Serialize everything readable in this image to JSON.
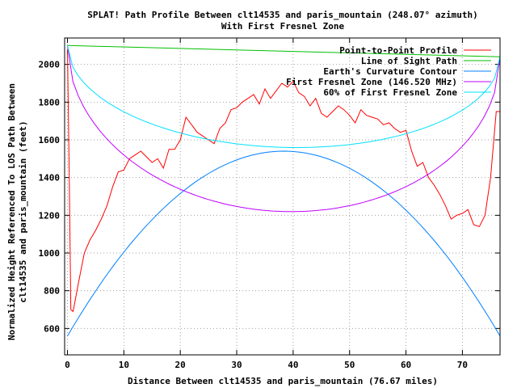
{
  "chart_data": {
    "type": "line",
    "title_line1": "SPLAT! Path Profile Between clt14535 and paris_mountain (248.07° azimuth)",
    "title_line2": "With First Fresnel Zone",
    "xlabel": "Distance Between clt14535 and paris_mountain (76.67 miles)",
    "ylabel_line1": "Normalized Height Referenced To LOS Path Between",
    "ylabel_line2": "clt14535 and paris_mountain (feet)",
    "xlim": [
      -0.5,
      76.67
    ],
    "ylim": [
      460,
      2140
    ],
    "xticks": [
      0,
      10,
      20,
      30,
      40,
      50,
      60,
      70
    ],
    "yticks": [
      600,
      800,
      1000,
      1200,
      1400,
      1600,
      1800,
      2000
    ],
    "grid": true,
    "legend_position": "top-right",
    "series": [
      {
        "name": "Point-to-Point Profile",
        "color": "#ff0000",
        "x": [
          0,
          0.3,
          0.6,
          1,
          2,
          3,
          4,
          5,
          6,
          7,
          8,
          9,
          10,
          11,
          12,
          13,
          14,
          15,
          16,
          17,
          18,
          19,
          20,
          21,
          22,
          23,
          24,
          25,
          26,
          27,
          28,
          29,
          30,
          31,
          32,
          33,
          34,
          35,
          36,
          37,
          38,
          39,
          40,
          41,
          42,
          43,
          44,
          45,
          46,
          47,
          48,
          49,
          50,
          51,
          52,
          53,
          54,
          55,
          56,
          57,
          58,
          59,
          60,
          61,
          62,
          63,
          64,
          65,
          66,
          67,
          68,
          69,
          70,
          71,
          72,
          73,
          74,
          75,
          76,
          76.67
        ],
        "y": [
          2080,
          1450,
          700,
          690,
          850,
          1000,
          1070,
          1120,
          1180,
          1250,
          1350,
          1430,
          1440,
          1500,
          1520,
          1540,
          1510,
          1480,
          1500,
          1450,
          1550,
          1550,
          1600,
          1720,
          1680,
          1640,
          1620,
          1600,
          1580,
          1660,
          1690,
          1760,
          1770,
          1800,
          1820,
          1840,
          1790,
          1870,
          1820,
          1860,
          1900,
          1880,
          1910,
          1850,
          1830,
          1780,
          1820,
          1740,
          1720,
          1750,
          1780,
          1760,
          1730,
          1690,
          1760,
          1730,
          1720,
          1710,
          1680,
          1690,
          1660,
          1640,
          1650,
          1540,
          1460,
          1480,
          1400,
          1360,
          1310,
          1250,
          1180,
          1200,
          1210,
          1230,
          1150,
          1140,
          1200,
          1400,
          1750,
          1750
        ]
      },
      {
        "name": "Line of Sight Path",
        "color": "#00c000",
        "x": [
          0,
          76.67
        ],
        "y": [
          2100,
          2040
        ]
      },
      {
        "name": "Earth's Curvature Contour",
        "color": "#0080ff",
        "x": [
          0,
          76.67
        ],
        "y": [
          560,
          560
        ],
        "arc_peak": 1540
      },
      {
        "name": "First Fresnel Zone (146.520 MHz)",
        "color": "#c000ff",
        "x": [
          0,
          76.67
        ],
        "y": [
          2100,
          2040
        ],
        "arc_depth": 850
      },
      {
        "name": "60% of First Fresnel Zone",
        "color": "#00e0ff",
        "x": [
          0,
          76.67
        ],
        "y": [
          2100,
          2040
        ],
        "arc_depth": 510
      }
    ]
  }
}
